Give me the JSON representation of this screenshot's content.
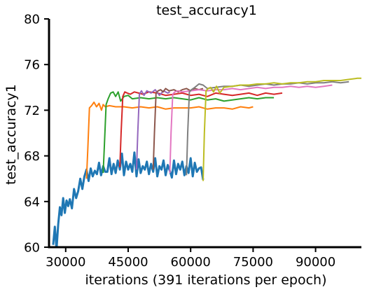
{
  "chart_data": {
    "type": "line",
    "title": "test_accuracy1",
    "xlabel": "iterations (391 iterations per epoch)",
    "ylabel": "test_accuracy1",
    "xlim": [
      26000,
      101000
    ],
    "ylim": [
      60,
      80
    ],
    "xticks": [
      30000,
      45000,
      60000,
      75000,
      90000
    ],
    "yticks": [
      60,
      64,
      68,
      72,
      76,
      80
    ],
    "grid": false,
    "legend": "none",
    "series": [
      {
        "color": "#1f77b4",
        "x": [
          27000,
          27400,
          27800,
          28200,
          28600,
          29000,
          29400,
          29800,
          30200,
          30600,
          31000,
          31500,
          32000,
          32500,
          33000,
          33500,
          34000,
          34500,
          35000,
          35500,
          36000,
          36500,
          37000,
          37500,
          38000,
          38500,
          39000,
          39500,
          40000,
          40500,
          41000,
          41500,
          42000,
          42500,
          43000,
          43500,
          44000,
          44500,
          45000,
          45500,
          46000,
          46500,
          47000,
          47500,
          48000,
          48500,
          49000,
          49500,
          50000,
          50500,
          51000,
          51500,
          52000,
          52500,
          53000,
          53500,
          54000,
          54500,
          55000,
          55500,
          56000,
          56500,
          57000,
          57500,
          58000,
          58500,
          59000,
          59500,
          60000,
          60500,
          61000,
          61500,
          62000,
          62500,
          63000
        ],
        "values": [
          60.2,
          61.8,
          59.8,
          62.0,
          63.5,
          62.8,
          64.3,
          63.0,
          64.1,
          63.6,
          64.2,
          63.4,
          65.1,
          64.3,
          64.9,
          66.0,
          65.1,
          66.2,
          66.8,
          65.8,
          66.9,
          66.2,
          66.7,
          66.4,
          67.4,
          66.3,
          67.1,
          66.6,
          66.6,
          67.8,
          66.4,
          67.3,
          66.5,
          67.6,
          66.8,
          68.2,
          66.3,
          67.5,
          66.8,
          67.3,
          66.6,
          68.3,
          66.2,
          67.7,
          66.5,
          67.1,
          66.8,
          67.5,
          66.4,
          67.3,
          66.6,
          67.8,
          66.2,
          67.1,
          66.8,
          67.6,
          66.3,
          67.2,
          66.7,
          66.1,
          67.6,
          66.4,
          67.3,
          66.8,
          67.5,
          66.3,
          67.1,
          66.5,
          67.8,
          66.2,
          67.4,
          66.6,
          66.9,
          67.0,
          65.9
        ]
      },
      {
        "color": "#ff7f0e",
        "x": [
          35000,
          35300,
          35700,
          36200,
          36800,
          37400,
          38000,
          38600,
          39000,
          39500,
          40500,
          42000,
          44000,
          46000,
          48000,
          50000,
          52000,
          54000,
          56000,
          58000,
          60000,
          62000,
          64000,
          66000,
          68000,
          70000,
          72000,
          74000,
          75000
        ],
        "values": [
          66.0,
          68.5,
          72.2,
          72.4,
          72.7,
          72.3,
          72.6,
          72.0,
          72.5,
          72.3,
          72.4,
          72.3,
          72.3,
          72.2,
          72.3,
          72.2,
          72.3,
          72.1,
          72.2,
          72.2,
          72.2,
          72.3,
          72.1,
          72.2,
          72.2,
          72.1,
          72.3,
          72.2,
          72.3
        ]
      },
      {
        "color": "#2ca02c",
        "x": [
          39000,
          39300,
          39700,
          40200,
          40800,
          41400,
          42000,
          42600,
          43200,
          44000,
          45000,
          46000,
          48000,
          50000,
          52000,
          54000,
          56000,
          58000,
          60000,
          62000,
          64000,
          66000,
          68000,
          70000,
          72000,
          74000,
          76000,
          78000,
          80000
        ],
        "values": [
          66.5,
          69.0,
          72.5,
          73.0,
          73.5,
          73.6,
          73.2,
          73.6,
          72.8,
          73.2,
          73.3,
          73.0,
          73.1,
          73.0,
          73.1,
          73.0,
          73.1,
          73.0,
          72.9,
          73.1,
          72.9,
          73.0,
          72.8,
          72.9,
          73.0,
          73.1,
          73.0,
          73.1,
          73.1
        ]
      },
      {
        "color": "#d62728",
        "x": [
          43000,
          43300,
          43700,
          44200,
          44800,
          45500,
          46500,
          47500,
          48500,
          50000,
          52000,
          54000,
          56000,
          58000,
          60000,
          62000,
          64000,
          66000,
          68000,
          70000,
          72000,
          74000,
          76000,
          78000,
          80000,
          82000
        ],
        "values": [
          67.0,
          70.0,
          73.2,
          73.6,
          73.5,
          73.4,
          73.6,
          73.5,
          73.4,
          73.6,
          73.5,
          73.3,
          73.4,
          73.5,
          73.3,
          73.4,
          73.2,
          73.5,
          73.4,
          73.3,
          73.4,
          73.5,
          73.3,
          73.5,
          73.4,
          73.5
        ]
      },
      {
        "color": "#9467bd",
        "x": [
          47000,
          47300,
          47700,
          48200,
          48800,
          49500,
          50500,
          51500,
          52500,
          53500,
          54500,
          55000
        ],
        "values": [
          66.8,
          70.0,
          73.4,
          73.7,
          73.3,
          73.7,
          73.5,
          73.8,
          73.3,
          73.7,
          73.5,
          73.6
        ]
      },
      {
        "color": "#8c564b",
        "x": [
          51000,
          51300,
          51700,
          52200,
          52800,
          53400,
          54000,
          54800,
          56000,
          57000,
          58000,
          59000,
          60000,
          61000,
          62000,
          63000
        ],
        "values": [
          66.8,
          70.0,
          73.5,
          73.7,
          73.8,
          73.6,
          73.9,
          73.7,
          73.8,
          73.6,
          73.8,
          73.9,
          73.7,
          73.9,
          73.8,
          73.9
        ]
      },
      {
        "color": "#e377c2",
        "x": [
          55000,
          55300,
          55700,
          56200,
          57000,
          58000,
          60000,
          62000,
          64000,
          66000,
          68000,
          70000,
          72000,
          74000,
          76000,
          78000,
          80000,
          82000,
          84000,
          86000,
          88000,
          90000,
          92000,
          94000
        ],
        "values": [
          66.5,
          70.0,
          73.4,
          73.6,
          73.7,
          73.6,
          73.7,
          73.8,
          73.7,
          73.8,
          73.8,
          73.9,
          73.8,
          73.9,
          74.0,
          73.9,
          74.0,
          74.0,
          74.1,
          74.0,
          74.1,
          74.0,
          74.1,
          74.2
        ]
      },
      {
        "color": "#7f7f7f",
        "x": [
          59000,
          59300,
          59700,
          60200,
          61000,
          62000,
          63000,
          64000,
          66000,
          68000,
          70000,
          72000,
          74000,
          76000,
          78000,
          80000,
          82000,
          84000,
          86000,
          88000,
          90000,
          92000,
          94000,
          96000,
          98000
        ],
        "values": [
          66.3,
          70.0,
          73.6,
          73.8,
          74.0,
          74.3,
          74.2,
          73.9,
          74.0,
          74.1,
          74.1,
          74.2,
          74.1,
          74.2,
          74.3,
          74.2,
          74.3,
          74.3,
          74.4,
          74.3,
          74.4,
          74.4,
          74.5,
          74.4,
          74.5
        ]
      },
      {
        "color": "#bcbd22",
        "x": [
          63000,
          63300,
          63700,
          64200,
          64800,
          65500,
          66200,
          67000,
          68000,
          70000,
          72000,
          74000,
          76000,
          78000,
          80000,
          82000,
          84000,
          86000,
          88000,
          90000,
          92000,
          94000,
          96000,
          98000,
          100000,
          101000
        ],
        "values": [
          65.8,
          70.0,
          73.7,
          73.9,
          74.0,
          73.6,
          74.1,
          73.5,
          74.0,
          74.1,
          74.2,
          74.2,
          74.3,
          74.3,
          74.4,
          74.3,
          74.4,
          74.4,
          74.5,
          74.5,
          74.6,
          74.6,
          74.6,
          74.7,
          74.8,
          74.8
        ]
      }
    ]
  }
}
